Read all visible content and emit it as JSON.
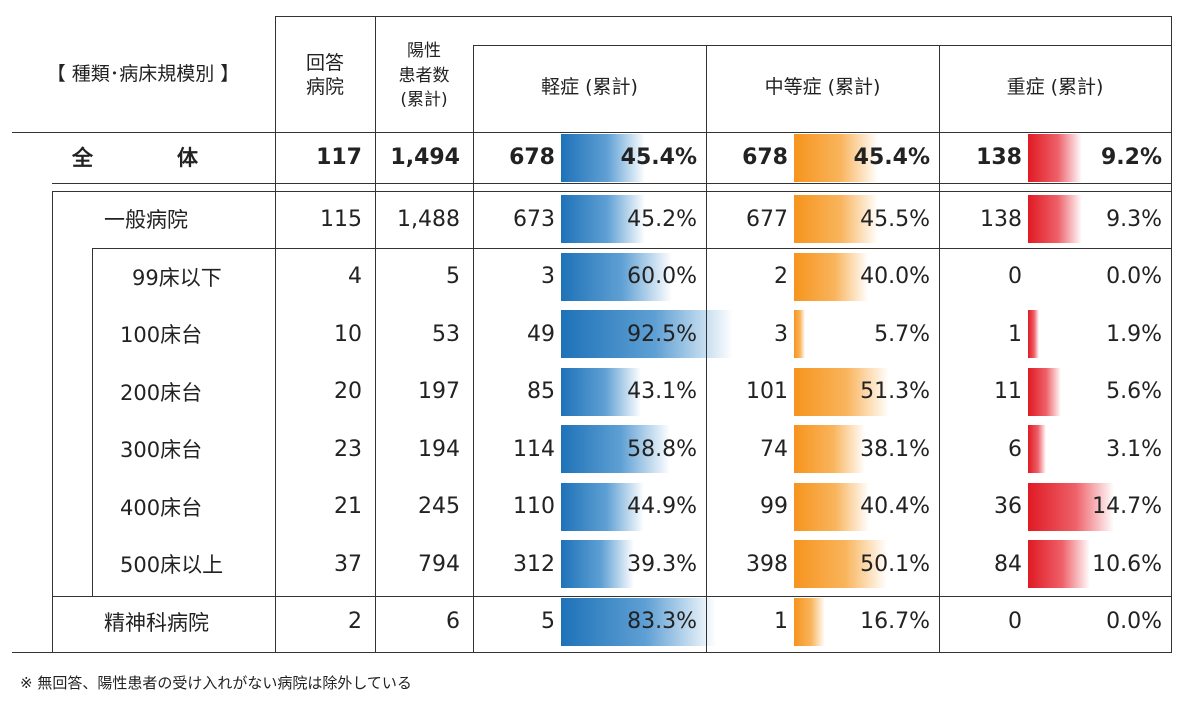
{
  "headers": {
    "category": "【 種類･病床規模別 】",
    "hospitals": [
      "回答",
      "病院"
    ],
    "patients": [
      "陽性",
      "患者数",
      "(累計)"
    ],
    "mild": "軽症 (累計)",
    "moderate": "中等症 (累計)",
    "severe": "重症 (累計)"
  },
  "rows": [
    {
      "label": "全　　　　体",
      "hospitals": "117",
      "patients": "1,494",
      "mild": "678",
      "mild_pct": "45.4%",
      "mild_ratio": 0.454,
      "moderate": "678",
      "moderate_pct": "45.4%",
      "moderate_ratio": 0.454,
      "severe": "138",
      "severe_pct": "9.2%",
      "severe_ratio": 0.092,
      "bold": true
    },
    {
      "label": "一般病院",
      "hospitals": "115",
      "patients": "1,488",
      "mild": "673",
      "mild_pct": "45.2%",
      "mild_ratio": 0.452,
      "moderate": "677",
      "moderate_pct": "45.5%",
      "moderate_ratio": 0.455,
      "severe": "138",
      "severe_pct": "9.3%",
      "severe_ratio": 0.093
    },
    {
      "label": "99床以下",
      "hospitals": "4",
      "patients": "5",
      "mild": "3",
      "mild_pct": "60.0%",
      "mild_ratio": 0.6,
      "moderate": "2",
      "moderate_pct": "40.0%",
      "moderate_ratio": 0.4,
      "severe": "0",
      "severe_pct": "0.0%",
      "severe_ratio": 0.0
    },
    {
      "label": "100床台",
      "hospitals": "10",
      "patients": "53",
      "mild": "49",
      "mild_pct": "92.5%",
      "mild_ratio": 0.925,
      "moderate": "3",
      "moderate_pct": "5.7%",
      "moderate_ratio": 0.057,
      "severe": "1",
      "severe_pct": "1.9%",
      "severe_ratio": 0.019
    },
    {
      "label": "200床台",
      "hospitals": "20",
      "patients": "197",
      "mild": "85",
      "mild_pct": "43.1%",
      "mild_ratio": 0.431,
      "moderate": "101",
      "moderate_pct": "51.3%",
      "moderate_ratio": 0.513,
      "severe": "11",
      "severe_pct": "5.6%",
      "severe_ratio": 0.056
    },
    {
      "label": "300床台",
      "hospitals": "23",
      "patients": "194",
      "mild": "114",
      "mild_pct": "58.8%",
      "mild_ratio": 0.588,
      "moderate": "74",
      "moderate_pct": "38.1%",
      "moderate_ratio": 0.381,
      "severe": "6",
      "severe_pct": "3.1%",
      "severe_ratio": 0.031
    },
    {
      "label": "400床台",
      "hospitals": "21",
      "patients": "245",
      "mild": "110",
      "mild_pct": "44.9%",
      "mild_ratio": 0.449,
      "moderate": "99",
      "moderate_pct": "40.4%",
      "moderate_ratio": 0.404,
      "severe": "36",
      "severe_pct": "14.7%",
      "severe_ratio": 0.147
    },
    {
      "label": "500床以上",
      "hospitals": "37",
      "patients": "794",
      "mild": "312",
      "mild_pct": "39.3%",
      "mild_ratio": 0.393,
      "moderate": "398",
      "moderate_pct": "50.1%",
      "moderate_ratio": 0.501,
      "severe": "84",
      "severe_pct": "10.6%",
      "severe_ratio": 0.106
    },
    {
      "label": "精神科病院",
      "hospitals": "2",
      "patients": "6",
      "mild": "5",
      "mild_pct": "83.3%",
      "mild_ratio": 0.833,
      "moderate": "1",
      "moderate_pct": "16.7%",
      "moderate_ratio": 0.167,
      "severe": "0",
      "severe_pct": "0.0%",
      "severe_ratio": 0.0
    }
  ],
  "footnote": "※ 無回答、陽性患者の受け入れがない病院は除外している",
  "colors": {
    "mild": "#1e72b8",
    "moderate": "#f6941d",
    "severe": "#e01a24"
  }
}
